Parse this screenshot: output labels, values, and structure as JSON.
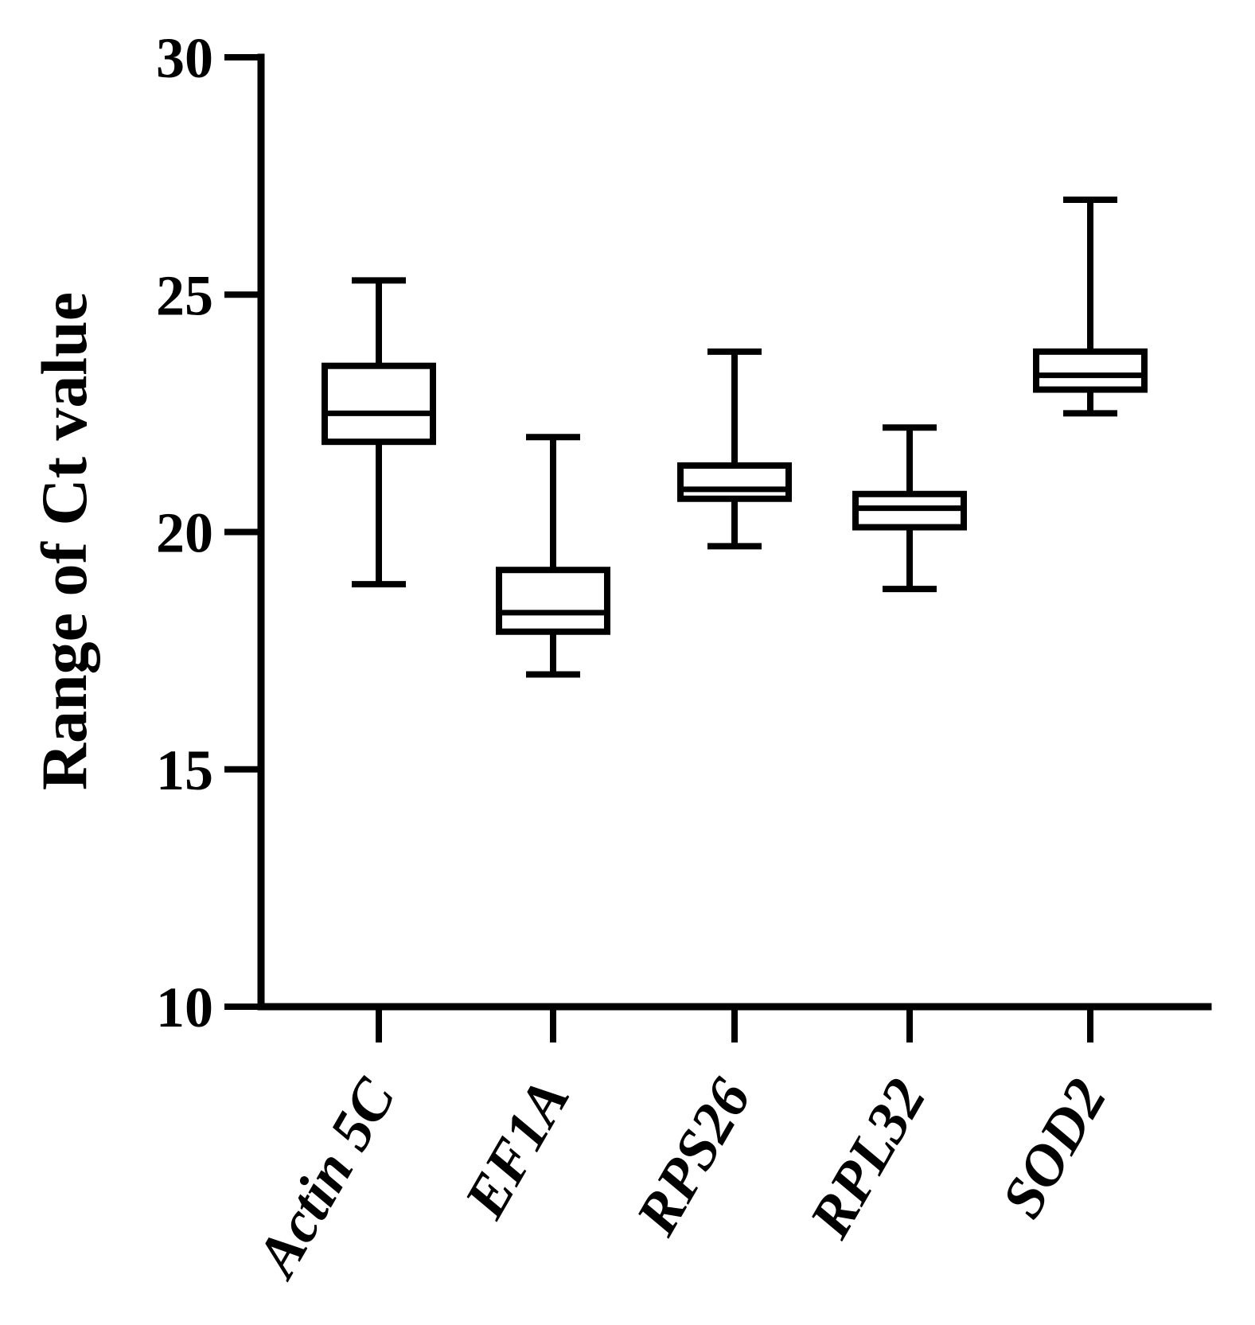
{
  "chart_data": {
    "type": "boxplot",
    "ylabel": "Range of Ct value",
    "xlabel": "",
    "ylim": [
      10,
      30
    ],
    "yticks": [
      10,
      15,
      20,
      25,
      30
    ],
    "categories": [
      "Actin 5C",
      "EF1A",
      "RPS26",
      "RPL32",
      "SOD2"
    ],
    "boxes": [
      {
        "label": "Actin 5C",
        "min": 18.9,
        "q1": 21.9,
        "median": 22.5,
        "q3": 23.5,
        "max": 25.3
      },
      {
        "label": "EF1A",
        "min": 17.0,
        "q1": 17.9,
        "median": 18.3,
        "q3": 19.2,
        "max": 22.0
      },
      {
        "label": "RPS26",
        "min": 19.7,
        "q1": 20.7,
        "median": 20.9,
        "q3": 21.4,
        "max": 23.8
      },
      {
        "label": "RPL32",
        "min": 18.8,
        "q1": 20.1,
        "median": 20.5,
        "q3": 20.8,
        "max": 22.2
      },
      {
        "label": "SOD2",
        "min": 22.5,
        "q1": 23.0,
        "median": 23.3,
        "q3": 23.8,
        "max": 27.0
      }
    ],
    "grid": false,
    "legend": "none"
  }
}
